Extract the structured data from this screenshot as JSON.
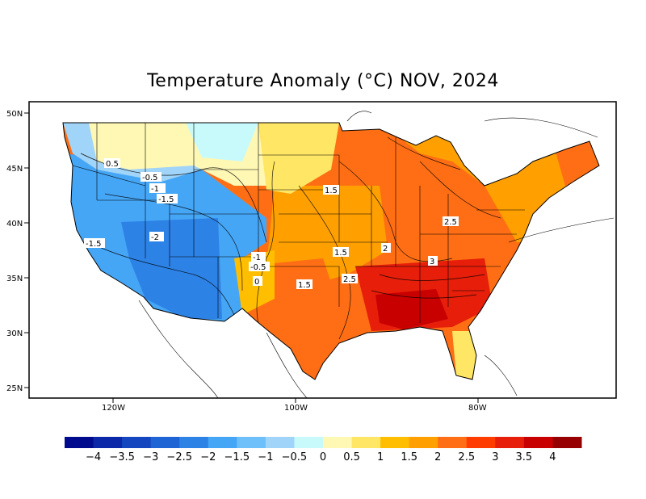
{
  "title": "Temperature Anomaly (°C) NOV, 2024",
  "latitude_labels": [
    "50N",
    "45N",
    "40N",
    "35N",
    "30N",
    "25N"
  ],
  "longitude_labels": [
    "120W",
    "100W",
    "80W"
  ],
  "contour_labels": [
    "0.5",
    "-0.5",
    "-1",
    "-1.5",
    "-1.5",
    "-2",
    "-1",
    "-0.5",
    "0",
    "1.5",
    "1.5",
    "1.5",
    "2",
    "2.5",
    "2.5",
    "3"
  ],
  "colorbar": {
    "colors": [
      "#000a8c",
      "#0a28a8",
      "#1446c0",
      "#1e64d4",
      "#2d82e6",
      "#46a6f6",
      "#6ec0fa",
      "#a0d4f8",
      "#c8fafc",
      "#fff8b4",
      "#ffe664",
      "#ffbe00",
      "#ffa000",
      "#ff6e14",
      "#ff3c00",
      "#e61e0a",
      "#c80000",
      "#960000"
    ],
    "ticks": [
      "-4",
      "-3.5",
      "-3",
      "-2.5",
      "-2",
      "-1.5",
      "-1",
      "-0.5",
      "0",
      "0.5",
      "1",
      "1.5",
      "2",
      "2.5",
      "3",
      "3.5",
      "4"
    ]
  }
}
